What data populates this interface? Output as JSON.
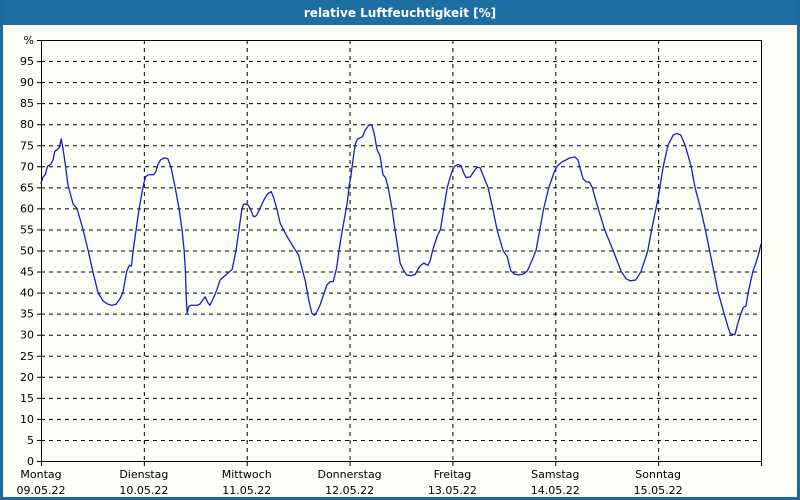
{
  "window": {
    "title": "relative Luftfeuchtigkeit [%]"
  },
  "colors": {
    "titlebar_bg": "#1d6fa3",
    "frame_border": "#1e6a9c",
    "content_bg": "#fcfdf6",
    "grid": "#000000",
    "axis": "#000000",
    "series_line": "#1c1cc4",
    "title_text": "#ffffff",
    "tick_text": "#000000"
  },
  "chart_data": {
    "type": "line",
    "title": "relative Luftfeuchtigkeit [%]",
    "ylabel": "%",
    "y_unit_label": "%",
    "ylim": [
      0,
      100
    ],
    "ytick_step": 5,
    "grid": "dashed",
    "legend_position": "none",
    "x_axis": {
      "unit": "hours",
      "range_hours": [
        0,
        168
      ],
      "day_tick_hours": [
        0,
        24,
        48,
        72,
        96,
        120,
        144
      ],
      "days": [
        {
          "name": "Montag",
          "date": "09.05.22"
        },
        {
          "name": "Dienstag",
          "date": "10.05.22"
        },
        {
          "name": "Mittwoch",
          "date": "11.05.22"
        },
        {
          "name": "Donnerstag",
          "date": "12.05.22"
        },
        {
          "name": "Freitag",
          "date": "13.05.22"
        },
        {
          "name": "Samstag",
          "date": "14.05.22"
        },
        {
          "name": "Sonntag",
          "date": "15.05.22"
        }
      ]
    },
    "series": [
      {
        "name": "relative Luftfeuchtigkeit",
        "unit": "%",
        "color": "#1c1cc4",
        "points": [
          [
            0,
            66
          ],
          [
            0.5,
            67.5
          ],
          [
            1,
            68
          ],
          [
            1.5,
            70
          ],
          [
            2.3,
            70.5
          ],
          [
            2.8,
            71.5
          ],
          [
            3.2,
            73.5
          ],
          [
            3.8,
            74
          ],
          [
            4.3,
            74.5
          ],
          [
            4.7,
            76.5
          ],
          [
            5,
            75
          ],
          [
            5.6,
            71
          ],
          [
            6.3,
            65.5
          ],
          [
            7.5,
            61
          ],
          [
            8.4,
            60
          ],
          [
            9.8,
            55
          ],
          [
            11,
            50
          ],
          [
            12.1,
            45
          ],
          [
            13.3,
            40
          ],
          [
            14.5,
            38
          ],
          [
            15.5,
            37.3
          ],
          [
            16.5,
            37
          ],
          [
            17.5,
            37.2
          ],
          [
            18.4,
            38.5
          ],
          [
            19.1,
            40
          ],
          [
            20,
            45
          ],
          [
            20.6,
            46.5
          ],
          [
            21.1,
            46.3
          ],
          [
            21.5,
            50
          ],
          [
            22.2,
            55
          ],
          [
            22.9,
            60
          ],
          [
            23.6,
            64
          ],
          [
            24,
            66
          ],
          [
            24.4,
            67.5
          ],
          [
            25,
            68
          ],
          [
            26.3,
            68
          ],
          [
            26.8,
            68.7
          ],
          [
            27.3,
            70.5
          ],
          [
            27.9,
            71.5
          ],
          [
            28.8,
            72
          ],
          [
            29.6,
            71.8
          ],
          [
            30.4,
            69.5
          ],
          [
            30.8,
            67.5
          ],
          [
            31.3,
            65
          ],
          [
            32.2,
            60
          ],
          [
            32.9,
            55
          ],
          [
            33.4,
            50
          ],
          [
            33.7,
            45
          ],
          [
            33.9,
            38.5
          ],
          [
            34.1,
            35.2
          ],
          [
            34.5,
            36.7
          ],
          [
            35,
            37
          ],
          [
            36.5,
            37
          ],
          [
            37.1,
            37.3
          ],
          [
            38.3,
            39
          ],
          [
            39,
            37.5
          ],
          [
            39.4,
            37
          ],
          [
            40.2,
            38.6
          ],
          [
            41,
            40.6
          ],
          [
            41.8,
            43
          ],
          [
            42.9,
            44
          ],
          [
            44.6,
            45.5
          ],
          [
            45.5,
            50
          ],
          [
            46.2,
            55
          ],
          [
            46.9,
            60
          ],
          [
            47.3,
            61
          ],
          [
            47.8,
            61
          ],
          [
            48.3,
            60.8
          ],
          [
            48.8,
            60
          ],
          [
            49.5,
            58.2
          ],
          [
            49.9,
            58
          ],
          [
            50.4,
            58.5
          ],
          [
            51.1,
            60
          ],
          [
            52,
            62
          ],
          [
            52.9,
            63.5
          ],
          [
            53.7,
            64
          ],
          [
            54.3,
            62.5
          ],
          [
            55.1,
            59.6
          ],
          [
            55.8,
            56.5
          ],
          [
            56.4,
            55.3
          ],
          [
            57.3,
            53.5
          ],
          [
            58.8,
            51
          ],
          [
            60.1,
            48.9
          ],
          [
            60.9,
            45.8
          ],
          [
            61.7,
            42.6
          ],
          [
            62.4,
            38.6
          ],
          [
            63.2,
            35.1
          ],
          [
            63.8,
            34.6
          ],
          [
            64.4,
            35.5
          ],
          [
            65.1,
            37
          ],
          [
            65.9,
            39.4
          ],
          [
            66.7,
            41.8
          ],
          [
            67.5,
            42.6
          ],
          [
            68.2,
            42.6
          ],
          [
            69,
            46
          ],
          [
            69.5,
            49.7
          ],
          [
            70,
            53
          ],
          [
            70.7,
            57
          ],
          [
            71.4,
            61
          ],
          [
            72,
            66
          ],
          [
            72.3,
            67.5
          ],
          [
            72.6,
            70
          ],
          [
            73,
            73
          ],
          [
            73.4,
            75.5
          ],
          [
            73.9,
            76.5
          ],
          [
            75,
            77
          ],
          [
            75.6,
            78.5
          ],
          [
            76.5,
            79.8
          ],
          [
            77.2,
            79.8
          ],
          [
            77.8,
            77.5
          ],
          [
            78.4,
            74
          ],
          [
            79.1,
            72.5
          ],
          [
            79.8,
            68
          ],
          [
            80.4,
            67.3
          ],
          [
            81,
            65
          ],
          [
            81.9,
            60
          ],
          [
            82.6,
            55
          ],
          [
            83.2,
            51
          ],
          [
            83.8,
            47
          ],
          [
            84.5,
            45.5
          ],
          [
            85.3,
            44.2
          ],
          [
            86.3,
            44
          ],
          [
            87.3,
            44.3
          ],
          [
            88.4,
            46.3
          ],
          [
            89.3,
            47
          ],
          [
            90.3,
            46.5
          ],
          [
            90.8,
            47.5
          ],
          [
            91.5,
            50.5
          ],
          [
            92.5,
            53.5
          ],
          [
            93.2,
            55
          ],
          [
            94,
            60
          ],
          [
            94.8,
            65
          ],
          [
            95.5,
            67.5
          ],
          [
            96,
            69
          ],
          [
            96.5,
            70
          ],
          [
            97.2,
            70.4
          ],
          [
            98,
            70.2
          ],
          [
            98.6,
            68.5
          ],
          [
            99.2,
            67.3
          ],
          [
            100.2,
            67.5
          ],
          [
            101,
            68.8
          ],
          [
            101.8,
            69.8
          ],
          [
            102.5,
            69.6
          ],
          [
            103.3,
            67.5
          ],
          [
            104.3,
            65
          ],
          [
            105.4,
            60
          ],
          [
            106.4,
            55
          ],
          [
            107.8,
            50
          ],
          [
            108.8,
            48.5
          ],
          [
            109.6,
            45.2
          ],
          [
            110.5,
            44.4
          ],
          [
            111.5,
            44.2
          ],
          [
            112.5,
            44.4
          ],
          [
            113.5,
            45.2
          ],
          [
            114.5,
            47.5
          ],
          [
            115.5,
            50
          ],
          [
            116.4,
            55
          ],
          [
            117.3,
            60
          ],
          [
            118.5,
            65
          ],
          [
            119.7,
            68.5
          ],
          [
            120.4,
            70
          ],
          [
            121.5,
            71
          ],
          [
            122.5,
            71.5
          ],
          [
            123.4,
            72
          ],
          [
            124.6,
            72.2
          ],
          [
            125.3,
            71.5
          ],
          [
            125.8,
            69.5
          ],
          [
            126.5,
            67
          ],
          [
            127.2,
            66.3
          ],
          [
            128,
            66.2
          ],
          [
            128.6,
            65
          ],
          [
            130,
            60
          ],
          [
            131.5,
            55
          ],
          [
            133.5,
            50
          ],
          [
            135,
            46
          ],
          [
            135.4,
            45
          ],
          [
            136.5,
            43.3
          ],
          [
            137.5,
            42.8
          ],
          [
            138.8,
            43
          ],
          [
            140,
            45
          ],
          [
            141.6,
            50
          ],
          [
            142.5,
            55
          ],
          [
            143.3,
            59
          ],
          [
            144,
            62.5
          ],
          [
            144.4,
            65
          ],
          [
            145.2,
            70
          ],
          [
            146.3,
            75
          ],
          [
            147.5,
            77.4
          ],
          [
            148.4,
            77.8
          ],
          [
            149.3,
            77.4
          ],
          [
            150.3,
            75
          ],
          [
            151.7,
            70
          ],
          [
            152.6,
            65
          ],
          [
            153.9,
            60
          ],
          [
            155,
            55
          ],
          [
            156,
            50
          ],
          [
            157,
            45
          ],
          [
            158,
            40
          ],
          [
            159.4,
            35
          ],
          [
            160.4,
            31.5
          ],
          [
            160.9,
            30.2
          ],
          [
            161.9,
            30
          ],
          [
            162.6,
            32.7
          ],
          [
            163.3,
            35
          ],
          [
            163.9,
            36.5
          ],
          [
            164.5,
            36.8
          ],
          [
            165,
            40
          ],
          [
            166.1,
            45
          ],
          [
            166.8,
            47
          ],
          [
            167.4,
            49
          ],
          [
            168,
            51.5
          ]
        ]
      }
    ]
  }
}
